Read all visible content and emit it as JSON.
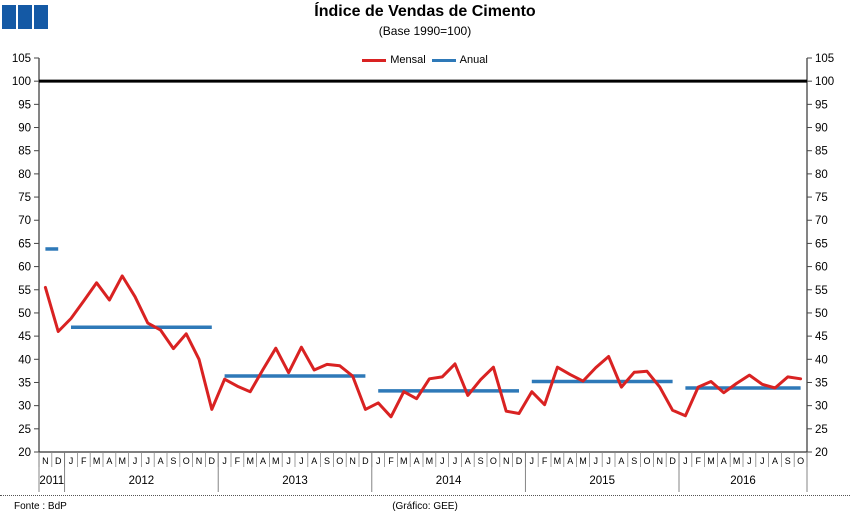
{
  "header": {
    "title": "Índice de Vendas de Cimento",
    "subtitle": "(Base 1990=100)"
  },
  "logo": {
    "color": "#1459A5",
    "square_count": 3
  },
  "legend": [
    {
      "label": "Mensal",
      "color": "#D92222"
    },
    {
      "label": "Anual",
      "color": "#2E79B8"
    }
  ],
  "footer": {
    "source": "Fonte : BdP",
    "credit": "(Gráfico: GEE)"
  },
  "chart_data": {
    "type": "line",
    "title": "Índice de Vendas de Cimento",
    "subtitle": "(Base 1990=100)",
    "ylim": [
      20,
      105
    ],
    "ytick_step": 5,
    "grid": false,
    "legend_position": "top-center",
    "reference_line": {
      "value": 100,
      "color": "#000000"
    },
    "month_labels": [
      "N",
      "D",
      "J",
      "F",
      "M",
      "A",
      "M",
      "J",
      "J",
      "A",
      "S",
      "O",
      "N",
      "D",
      "J",
      "F",
      "M",
      "A",
      "M",
      "J",
      "J",
      "A",
      "S",
      "O",
      "N",
      "D",
      "J",
      "F",
      "M",
      "A",
      "M",
      "J",
      "J",
      "A",
      "S",
      "O",
      "N",
      "D",
      "J",
      "F",
      "M",
      "A",
      "M",
      "J",
      "J",
      "A",
      "S",
      "O",
      "N",
      "D",
      "J",
      "F",
      "M",
      "A",
      "M",
      "J",
      "J",
      "A",
      "S",
      "O"
    ],
    "years": [
      {
        "label": "2011",
        "months": 2
      },
      {
        "label": "2012",
        "months": 12
      },
      {
        "label": "2013",
        "months": 12
      },
      {
        "label": "2014",
        "months": 12
      },
      {
        "label": "2015",
        "months": 12
      },
      {
        "label": "2016",
        "months": 10
      }
    ],
    "series": [
      {
        "name": "Mensal",
        "type": "line",
        "color": "#D92222",
        "values": [
          55.5,
          46.0,
          48.8,
          52.6,
          56.5,
          52.8,
          58.0,
          53.5,
          47.8,
          46.3,
          42.3,
          45.5,
          40.0,
          29.2,
          35.7,
          34.2,
          33.0,
          37.8,
          42.4,
          37.1,
          42.6,
          37.7,
          38.9,
          38.6,
          36.4,
          29.2,
          30.6,
          27.6,
          33.0,
          31.5,
          35.8,
          36.2,
          39.0,
          32.2,
          35.6,
          38.3,
          28.8,
          28.3,
          33.0,
          30.2,
          38.3,
          36.7,
          35.3,
          38.2,
          40.6,
          34.0,
          37.2,
          37.4,
          34.0,
          29.0,
          27.8,
          34.0,
          35.2,
          32.8,
          34.8,
          36.6,
          34.6,
          33.8,
          36.2,
          35.8
        ]
      },
      {
        "name": "Anual",
        "type": "horizontal-segments",
        "color": "#2E79B8",
        "segments": [
          {
            "year": "2011",
            "value": 63.8
          },
          {
            "year": "2012",
            "value": 46.9
          },
          {
            "year": "2013",
            "value": 36.4
          },
          {
            "year": "2014",
            "value": 33.2
          },
          {
            "year": "2015",
            "value": 35.2
          },
          {
            "year": "2016",
            "value": 33.8
          }
        ]
      }
    ]
  }
}
